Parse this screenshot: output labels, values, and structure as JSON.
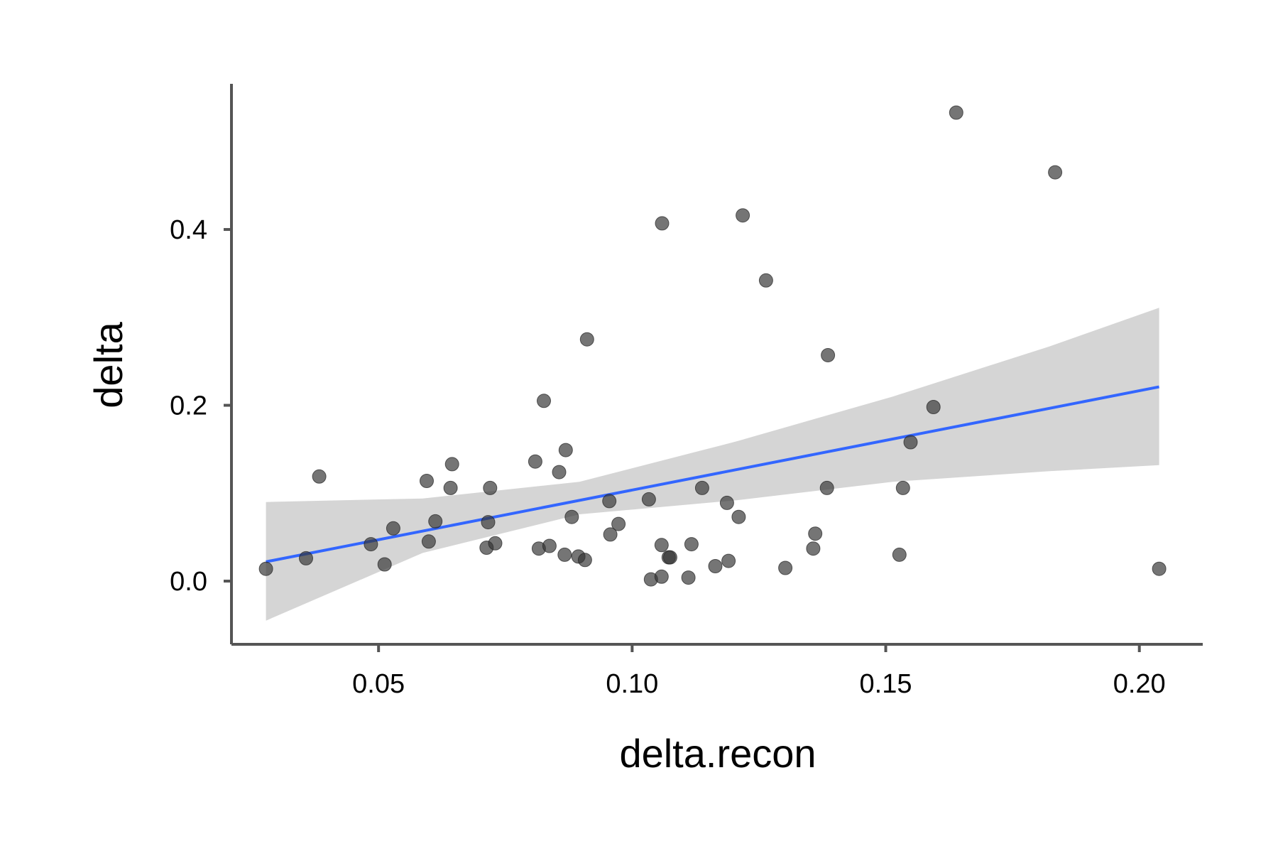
{
  "chart_data": {
    "type": "scatter",
    "title": "",
    "xlabel": "delta.recon",
    "ylabel": "delta",
    "xlim": [
      0.021,
      0.2125
    ],
    "ylim": [
      -0.0719,
      0.5657
    ],
    "x_ticks": [
      {
        "value": 0.05,
        "label": "0.05"
      },
      {
        "value": 0.1,
        "label": "0.10"
      },
      {
        "value": 0.15,
        "label": "0.15"
      },
      {
        "value": 0.2,
        "label": "0.20"
      }
    ],
    "y_ticks": [
      {
        "value": 0.0,
        "label": "0.0"
      },
      {
        "value": 0.2,
        "label": "0.2"
      },
      {
        "value": 0.4,
        "label": "0.4"
      }
    ],
    "grid": false,
    "legend": "none",
    "colors": {
      "points": "#333333",
      "fit_line": "#3366FF",
      "ribbon": "#d3d3d3",
      "axis": "#555555"
    },
    "series": [
      {
        "type": "scatter",
        "x": [
          0.0278,
          0.0357,
          0.0383,
          0.0485,
          0.0512,
          0.0529,
          0.0595,
          0.0599,
          0.0612,
          0.0642,
          0.0645,
          0.0713,
          0.0716,
          0.072,
          0.073,
          0.0809,
          0.0816,
          0.0826,
          0.0837,
          0.0856,
          0.0867,
          0.0869,
          0.0881,
          0.0894,
          0.0907,
          0.0911,
          0.0955,
          0.0957,
          0.0973,
          0.1033,
          0.1037,
          0.1058,
          0.1058,
          0.1059,
          0.1072,
          0.1075,
          0.1111,
          0.1117,
          0.1138,
          0.1164,
          0.1187,
          0.119,
          0.121,
          0.1218,
          0.1264,
          0.1302,
          0.1357,
          0.1361,
          0.1384,
          0.1386,
          0.1527,
          0.1534,
          0.1549,
          0.1594,
          0.1639,
          0.1834,
          0.2039
        ],
        "y": [
          0.014,
          0.026,
          0.119,
          0.042,
          0.019,
          0.06,
          0.114,
          0.045,
          0.068,
          0.106,
          0.133,
          0.038,
          0.067,
          0.106,
          0.043,
          0.136,
          0.037,
          0.205,
          0.04,
          0.124,
          0.03,
          0.149,
          0.073,
          0.028,
          0.024,
          0.275,
          0.091,
          0.053,
          0.065,
          0.093,
          0.002,
          0.005,
          0.041,
          0.407,
          0.027,
          0.027,
          0.004,
          0.042,
          0.106,
          0.017,
          0.089,
          0.023,
          0.073,
          0.416,
          0.342,
          0.015,
          0.037,
          0.054,
          0.106,
          0.257,
          0.03,
          0.106,
          0.158,
          0.198,
          0.533,
          0.465,
          0.014
        ]
      },
      {
        "type": "line",
        "x": [
          0.0278,
          0.2039
        ],
        "y": [
          0.022,
          0.221
        ]
      },
      {
        "type": "area",
        "x": [
          0.0278,
          0.0587,
          0.0896,
          0.1206,
          0.1514,
          0.1823,
          0.2039
        ],
        "y_upper": [
          0.09,
          0.094,
          0.113,
          0.159,
          0.21,
          0.267,
          0.311
        ],
        "y_lower": [
          -0.045,
          0.032,
          0.076,
          0.092,
          0.113,
          0.125,
          0.132
        ]
      }
    ]
  }
}
